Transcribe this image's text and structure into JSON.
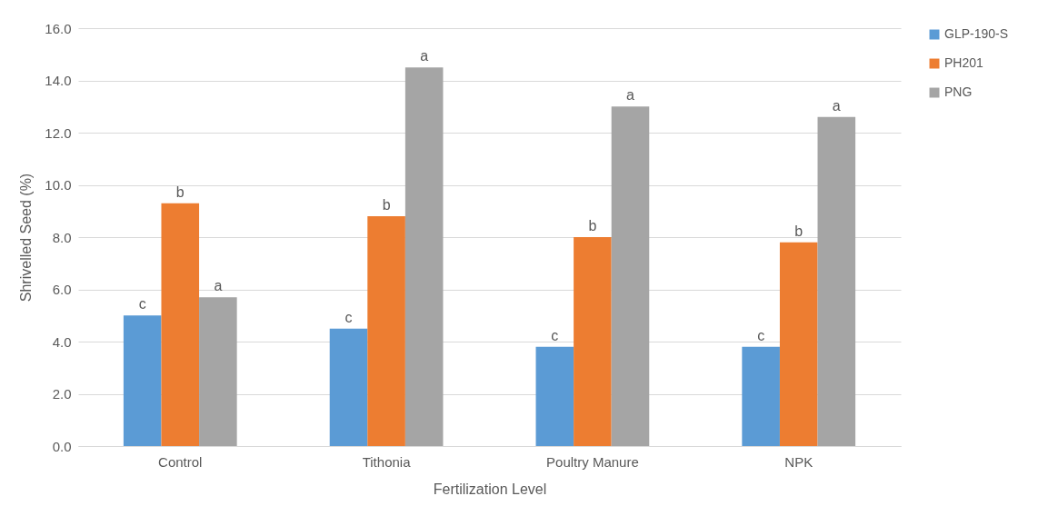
{
  "chart_data": {
    "type": "bar",
    "xlabel": "Fertilization Level",
    "ylabel": "Shrivelled Seed (%)",
    "categories": [
      "Control",
      "Tithonia",
      "Poultry Manure",
      "NPK"
    ],
    "series": [
      {
        "name": "GLP-190-S",
        "color": "#5b9bd5",
        "values": [
          5.0,
          4.5,
          3.8,
          3.8
        ],
        "value_labels": [
          "c",
          "c",
          "c",
          "c"
        ]
      },
      {
        "name": "PH201",
        "color": "#ed7d31",
        "values": [
          9.3,
          8.8,
          8.0,
          7.8
        ],
        "value_labels": [
          "b",
          "b",
          "b",
          "b"
        ]
      },
      {
        "name": "PNG",
        "color": "#a5a5a5",
        "values": [
          5.7,
          14.5,
          13.0,
          12.6
        ],
        "value_labels": [
          "a",
          "a",
          "a",
          "a"
        ]
      }
    ],
    "ylim": [
      0,
      16
    ],
    "yticks": [
      {
        "value": 0,
        "label": "0.0"
      },
      {
        "value": 2,
        "label": "2.0"
      },
      {
        "value": 4,
        "label": "4.0"
      },
      {
        "value": 6,
        "label": "6.0"
      },
      {
        "value": 8,
        "label": "8.0"
      },
      {
        "value": 10,
        "label": "10.0"
      },
      {
        "value": 12,
        "label": "12.0"
      },
      {
        "value": 14,
        "label": "14.0"
      },
      {
        "value": 16,
        "label": "16.0"
      }
    ],
    "grid": "y",
    "legend": "right"
  }
}
